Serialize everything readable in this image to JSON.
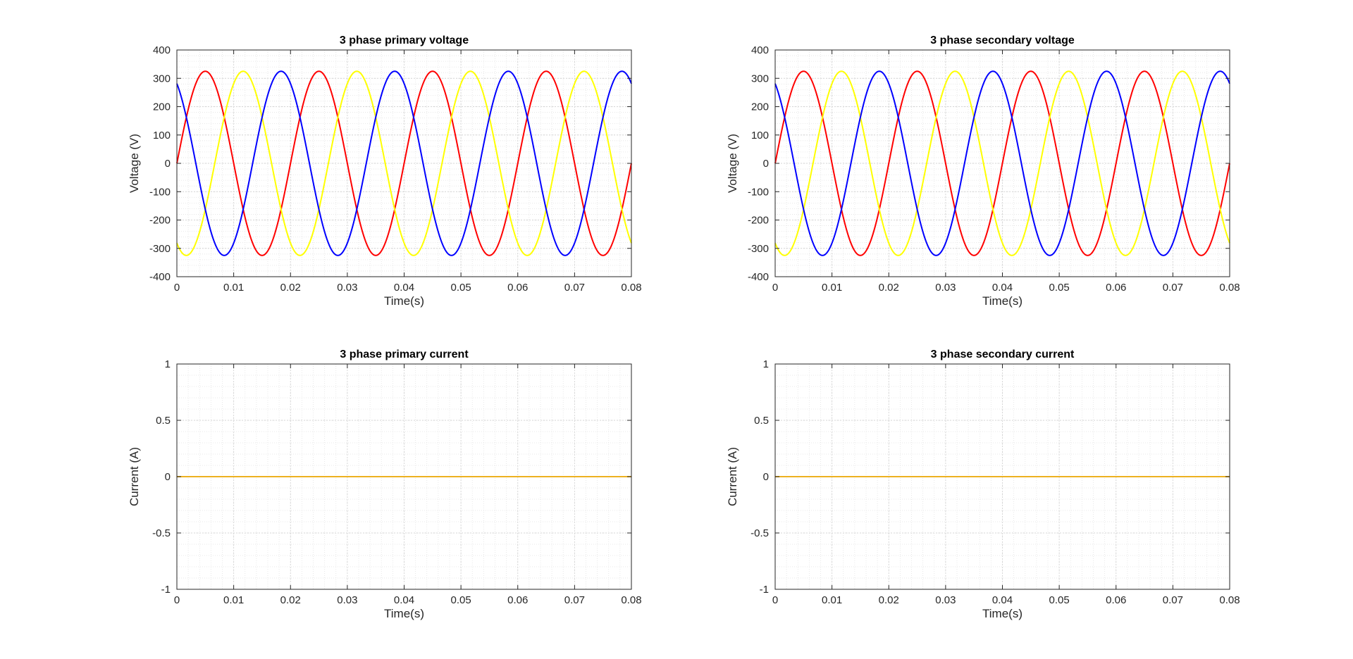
{
  "chart_data": [
    {
      "type": "line",
      "title": "3 phase primary voltage",
      "xlabel": "Time(s)",
      "ylabel": "Voltage (V)",
      "xlim": [
        0,
        0.08
      ],
      "ylim": [
        -400,
        400
      ],
      "xticks": [
        0,
        0.01,
        0.02,
        0.03,
        0.04,
        0.05,
        0.06,
        0.07,
        0.08
      ],
      "yticks": [
        -400,
        -300,
        -200,
        -100,
        0,
        100,
        200,
        300,
        400
      ],
      "grid": true,
      "minor_grid": true,
      "frequency_hz": 50,
      "series": [
        {
          "color": "#ff0000",
          "amplitude": 325,
          "phase_deg": 0
        },
        {
          "color": "#ffff00",
          "amplitude": 325,
          "phase_deg": -120
        },
        {
          "color": "#0000ff",
          "amplitude": 325,
          "phase_deg": 120
        }
      ]
    },
    {
      "type": "line",
      "title": "3 phase secondary voltage",
      "xlabel": "Time(s)",
      "ylabel": "Voltage (V)",
      "xlim": [
        0,
        0.08
      ],
      "ylim": [
        -400,
        400
      ],
      "xticks": [
        0,
        0.01,
        0.02,
        0.03,
        0.04,
        0.05,
        0.06,
        0.07,
        0.08
      ],
      "yticks": [
        -400,
        -300,
        -200,
        -100,
        0,
        100,
        200,
        300,
        400
      ],
      "grid": true,
      "minor_grid": true,
      "frequency_hz": 50,
      "series": [
        {
          "color": "#ff0000",
          "amplitude": 325,
          "phase_deg": 0
        },
        {
          "color": "#ffff00",
          "amplitude": 325,
          "phase_deg": -120
        },
        {
          "color": "#0000ff",
          "amplitude": 325,
          "phase_deg": 120
        }
      ]
    },
    {
      "type": "line",
      "title": "3 phase primary current",
      "xlabel": "Time(s)",
      "ylabel": "Current (A)",
      "xlim": [
        0,
        0.08
      ],
      "ylim": [
        -1,
        1
      ],
      "xticks": [
        0,
        0.01,
        0.02,
        0.03,
        0.04,
        0.05,
        0.06,
        0.07,
        0.08
      ],
      "yticks": [
        -1,
        -0.5,
        0,
        0.5,
        1
      ],
      "grid": true,
      "minor_grid": true,
      "frequency_hz": 50,
      "series": [
        {
          "color": "#ff0000",
          "amplitude": 0,
          "phase_deg": 0
        },
        {
          "color": "#0000ff",
          "amplitude": 0,
          "phase_deg": 120
        },
        {
          "color": "#edb120",
          "amplitude": 0,
          "phase_deg": -120
        }
      ]
    },
    {
      "type": "line",
      "title": "3 phase secondary current",
      "xlabel": "Time(s)",
      "ylabel": "Current (A)",
      "xlim": [
        0,
        0.08
      ],
      "ylim": [
        -1,
        1
      ],
      "xticks": [
        0,
        0.01,
        0.02,
        0.03,
        0.04,
        0.05,
        0.06,
        0.07,
        0.08
      ],
      "yticks": [
        -1,
        -0.5,
        0,
        0.5,
        1
      ],
      "grid": true,
      "minor_grid": true,
      "frequency_hz": 50,
      "series": [
        {
          "color": "#ff0000",
          "amplitude": 0,
          "phase_deg": 0
        },
        {
          "color": "#0000ff",
          "amplitude": 0,
          "phase_deg": 120
        },
        {
          "color": "#edb120",
          "amplitude": 0,
          "phase_deg": -120
        }
      ]
    }
  ]
}
